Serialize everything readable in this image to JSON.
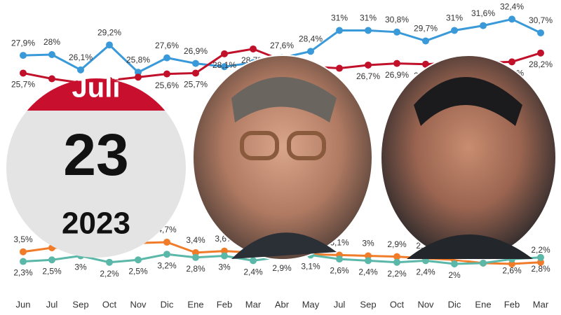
{
  "chart_data": {
    "type": "line",
    "categories": [
      "Jun",
      "Jul",
      "Sep",
      "Oct",
      "Nov",
      "Dic",
      "Ene",
      "Feb",
      "Mar",
      "Abr",
      "May",
      "Jul",
      "Sep",
      "Oct",
      "Nov",
      "Dic",
      "Ene",
      "Feb",
      "Mar"
    ],
    "series": [
      {
        "color": "#3a9ad9",
        "values": [
          27.9,
          28,
          26.1,
          29.2,
          25.8,
          27.6,
          26.9,
          26.5,
          27,
          27.6,
          28.4,
          31,
          31,
          30.8,
          29.7,
          31,
          31.6,
          32.4,
          30.7
        ],
        "value_labels": [
          "27,9%",
          "28%",
          "26,1%",
          "29,2%",
          "25,8%",
          "27,6%",
          "26,9%",
          null,
          null,
          "27,6%",
          "28,4%",
          "31%",
          "31%",
          "30,8%",
          "29,7%",
          "31%",
          "31,6%",
          "32,4%",
          "30,7%"
        ]
      },
      {
        "color": "#c0102a",
        "values": [
          25.7,
          25,
          24.5,
          24.8,
          25.2,
          25.6,
          25.7,
          28.1,
          28.7,
          27.3,
          26.5,
          26.3,
          26.7,
          26.9,
          26.8,
          27,
          27,
          27.1,
          28.2
        ],
        "value_labels": [
          "25,7%",
          null,
          null,
          null,
          null,
          "25,6%",
          "25,7%",
          "28,1%",
          "28,7%",
          null,
          null,
          null,
          "26,7%",
          "26,9%",
          "26,8%",
          null,
          null,
          "27,1%",
          "28,2%"
        ]
      },
      {
        "color": "#f07c2a",
        "values": [
          3.5,
          4,
          4,
          3.9,
          4.6,
          4.7,
          3.4,
          3.6,
          3.4,
          3,
          3.2,
          3.1,
          3,
          2.9,
          2.7,
          2.5,
          2.1,
          2,
          2.2
        ],
        "value_labels": [
          "3,5%",
          null,
          null,
          null,
          null,
          "4,7%",
          "3,4%",
          "3,6%",
          null,
          null,
          null,
          "3,1%",
          "3%",
          "2,9%",
          "2,7%",
          null,
          "2,1%",
          "2%",
          "2,2%"
        ]
      },
      {
        "color": "#5bb8a8",
        "values": [
          2.3,
          2.5,
          3,
          2.2,
          2.5,
          3.2,
          2.8,
          3,
          2.4,
          2.9,
          3.1,
          2.6,
          2.4,
          2.2,
          2.4,
          2,
          2.1,
          2.6,
          2.8
        ],
        "value_labels": [
          "2,3%",
          "2,5%",
          "3%",
          "2,2%",
          "2,5%",
          "3,2%",
          "2,8%",
          "3%",
          "2,4%",
          "2,9%",
          "3,1%",
          "2,6%",
          "2,4%",
          "2,2%",
          "2,4%",
          "2%",
          null,
          "2,6%",
          "2,8%"
        ]
      }
    ]
  },
  "calendar": {
    "month": "Juli",
    "day": "23",
    "year": "2023"
  }
}
